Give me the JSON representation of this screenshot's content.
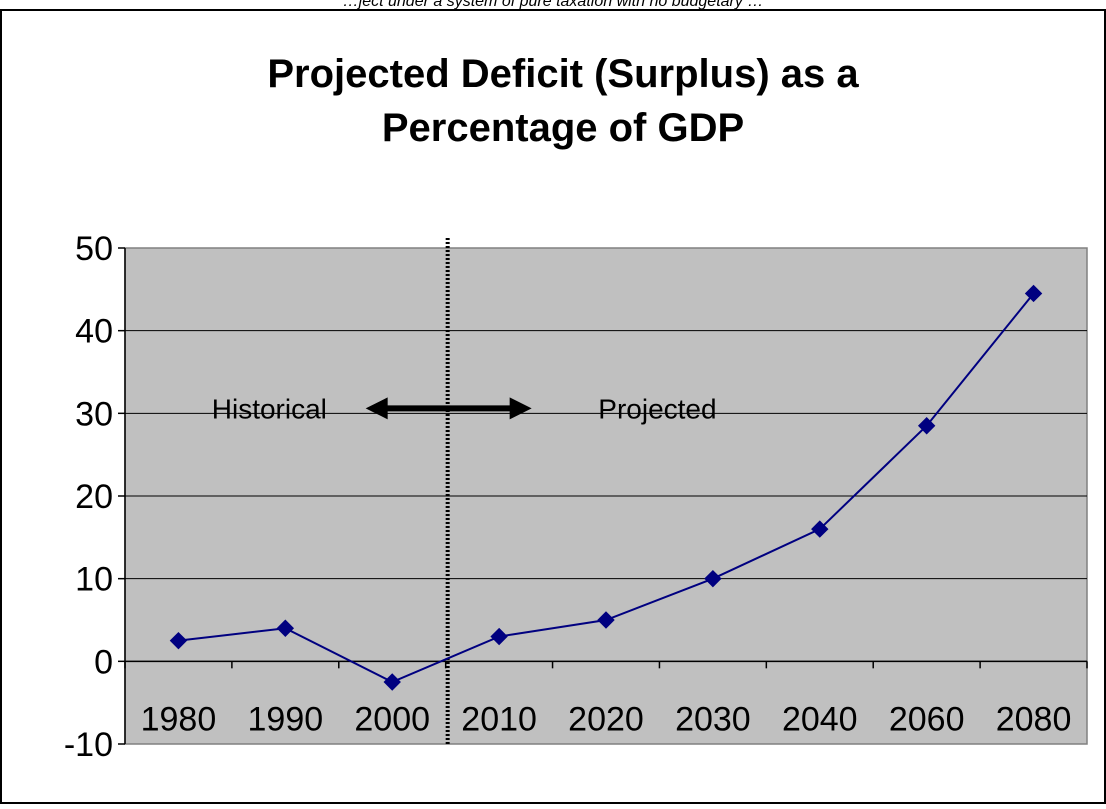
{
  "header_text": "…ject under a system of pure taxation with no budgetary …",
  "chart_data": {
    "type": "line",
    "title_lines": [
      "Projected Deficit (Surplus) as a",
      "Percentage of GDP"
    ],
    "xlabel": "",
    "ylabel": "",
    "categories": [
      "1980",
      "1990",
      "2000",
      "2010",
      "2020",
      "2030",
      "2040",
      "2060",
      "2080"
    ],
    "series": [
      {
        "values": [
          2.5,
          4,
          -2.5,
          3,
          5,
          10,
          16,
          28.5,
          44.5
        ]
      }
    ],
    "ylim": [
      -10,
      50
    ],
    "yticks": [
      -10,
      0,
      10,
      20,
      30,
      40,
      50
    ],
    "grid": true,
    "legend": "none",
    "annotations": {
      "left_label": "Historical",
      "right_label": "Projected",
      "divider_between": [
        "2000",
        "2010"
      ]
    },
    "colors": {
      "plot_background": "#c0c0c0",
      "series_line": "#000080",
      "marker": "#000080",
      "divider": "#000000",
      "arrow": "#000000"
    }
  }
}
